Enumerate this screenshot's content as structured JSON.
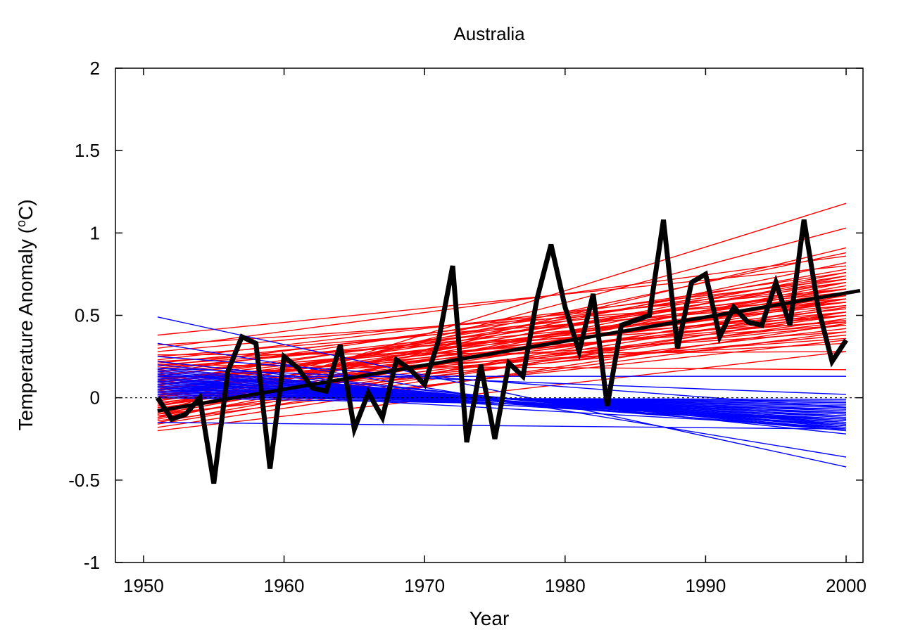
{
  "chart_data": {
    "type": "line",
    "title": "Australia",
    "xlabel": "Year",
    "ylabel": "Temperature Anomaly (",
    "ylabel_sup": "o",
    "ylabel_suffix": "C)",
    "xlim": [
      1948,
      2001.2
    ],
    "ylim": [
      -1,
      2
    ],
    "xticks": [
      1950,
      1960,
      1970,
      1980,
      1990,
      2000
    ],
    "yticks": [
      -1,
      -0.5,
      0,
      0.5,
      1,
      1.5,
      2
    ],
    "ytick_labels": [
      "-1",
      "-0.5",
      "0",
      "0.5",
      "1",
      "1.5",
      "2"
    ],
    "grid": false,
    "reference_line": {
      "y": 0,
      "style": "dotted",
      "color": "#000000"
    },
    "colors": {
      "observed": "#000000",
      "positive_trends": "#ff0000",
      "negative_trends": "#0000ff"
    },
    "observed": {
      "x": [
        1951,
        1952,
        1953,
        1954,
        1955,
        1956,
        1957,
        1958,
        1959,
        1960,
        1961,
        1962,
        1963,
        1964,
        1965,
        1966,
        1967,
        1968,
        1969,
        1970,
        1971,
        1972,
        1973,
        1974,
        1975,
        1976,
        1977,
        1978,
        1979,
        1980,
        1981,
        1982,
        1983,
        1984,
        1985,
        1986,
        1987,
        1988,
        1989,
        1990,
        1991,
        1992,
        1993,
        1994,
        1995,
        1996,
        1997,
        1998,
        1999,
        2000
      ],
      "y": [
        0.0,
        -0.13,
        -0.1,
        0.0,
        -0.52,
        0.16,
        0.37,
        0.33,
        -0.43,
        0.25,
        0.18,
        0.06,
        0.04,
        0.32,
        -0.19,
        0.03,
        -0.12,
        0.23,
        0.17,
        0.08,
        0.35,
        0.8,
        -0.27,
        0.2,
        -0.25,
        0.21,
        0.13,
        0.6,
        0.93,
        0.55,
        0.28,
        0.63,
        -0.05,
        0.44,
        0.47,
        0.5,
        1.08,
        0.3,
        0.7,
        0.75,
        0.37,
        0.55,
        0.46,
        0.44,
        0.7,
        0.44,
        1.08,
        0.55,
        0.22,
        0.35
      ]
    },
    "observed_trend": {
      "x": [
        1951,
        2001
      ],
      "y": [
        -0.08,
        0.65
      ]
    },
    "positive_trends": [
      [
        -0.2,
        0.28
      ],
      [
        -0.18,
        0.45
      ],
      [
        -0.16,
        0.52
      ],
      [
        -0.15,
        0.6
      ],
      [
        -0.14,
        0.4
      ],
      [
        -0.13,
        0.7
      ],
      [
        -0.12,
        0.55
      ],
      [
        -0.11,
        0.48
      ],
      [
        -0.1,
        0.64
      ],
      [
        -0.1,
        0.35
      ],
      [
        -0.09,
        0.74
      ],
      [
        -0.08,
        0.5
      ],
      [
        -0.07,
        0.62
      ],
      [
        -0.06,
        0.42
      ],
      [
        -0.05,
        0.68
      ],
      [
        -0.05,
        0.56
      ],
      [
        -0.04,
        0.76
      ],
      [
        -0.03,
        0.46
      ],
      [
        -0.02,
        0.6
      ],
      [
        -0.01,
        0.38
      ],
      [
        0.0,
        0.72
      ],
      [
        0.0,
        0.52
      ],
      [
        0.01,
        0.66
      ],
      [
        0.02,
        0.44
      ],
      [
        0.03,
        0.58
      ],
      [
        0.04,
        0.78
      ],
      [
        0.05,
        0.5
      ],
      [
        0.05,
        0.64
      ],
      [
        0.06,
        0.36
      ],
      [
        0.07,
        0.7
      ],
      [
        0.08,
        0.54
      ],
      [
        0.09,
        0.6
      ],
      [
        0.1,
        0.47
      ],
      [
        0.1,
        0.74
      ],
      [
        0.11,
        0.58
      ],
      [
        0.12,
        0.4
      ],
      [
        0.13,
        0.66
      ],
      [
        0.14,
        0.52
      ],
      [
        0.15,
        0.76
      ],
      [
        0.16,
        0.44
      ],
      [
        0.17,
        0.62
      ],
      [
        0.18,
        0.56
      ],
      [
        0.19,
        0.7
      ],
      [
        0.2,
        0.5
      ],
      [
        0.21,
        0.64
      ],
      [
        0.22,
        0.46
      ],
      [
        0.23,
        0.72
      ],
      [
        0.25,
        0.58
      ],
      [
        0.28,
        0.66
      ],
      [
        0.32,
        0.6
      ],
      [
        -0.12,
        1.18
      ],
      [
        -0.08,
        1.03
      ],
      [
        -0.1,
        0.91
      ],
      [
        0.0,
        0.88
      ],
      [
        -0.05,
        0.82
      ],
      [
        0.38,
        0.8
      ],
      [
        0.2,
        0.17
      ],
      [
        0.26,
        0.28
      ],
      [
        0.12,
        0.33
      ],
      [
        0.3,
        0.86
      ]
    ],
    "negative_trends": [
      [
        0.49,
        -0.42
      ],
      [
        0.33,
        -0.36
      ],
      [
        0.22,
        -0.22
      ],
      [
        0.2,
        -0.2
      ],
      [
        0.18,
        -0.19
      ],
      [
        0.17,
        -0.18
      ],
      [
        0.16,
        -0.17
      ],
      [
        0.15,
        -0.16
      ],
      [
        0.14,
        -0.15
      ],
      [
        0.13,
        -0.14
      ],
      [
        0.12,
        -0.13
      ],
      [
        0.11,
        -0.12
      ],
      [
        0.1,
        -0.11
      ],
      [
        0.09,
        -0.1
      ],
      [
        0.08,
        -0.09
      ],
      [
        0.07,
        -0.08
      ],
      [
        0.06,
        -0.07
      ],
      [
        0.05,
        -0.06
      ],
      [
        0.04,
        -0.05
      ],
      [
        0.03,
        -0.04
      ],
      [
        0.02,
        -0.03
      ],
      [
        0.01,
        -0.02
      ],
      [
        0.0,
        -0.01
      ],
      [
        0.12,
        -0.19
      ],
      [
        0.1,
        -0.17
      ],
      [
        0.08,
        -0.15
      ],
      [
        0.06,
        -0.13
      ],
      [
        0.04,
        -0.11
      ],
      [
        0.02,
        -0.09
      ],
      [
        0.0,
        -0.07
      ],
      [
        0.25,
        -0.06
      ],
      [
        0.18,
        0.02
      ],
      [
        0.13,
        0.13
      ],
      [
        0.14,
        -0.17
      ],
      [
        0.11,
        -0.15
      ],
      [
        0.09,
        -0.14
      ],
      [
        -0.15,
        -0.19
      ],
      [
        0.07,
        -0.16
      ],
      [
        0.05,
        -0.18
      ],
      [
        0.15,
        -0.2
      ]
    ]
  }
}
